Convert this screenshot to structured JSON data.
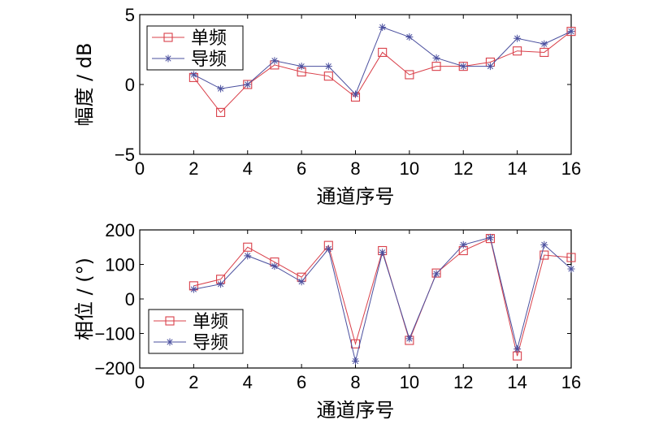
{
  "chart_data": [
    {
      "type": "line",
      "xlabel": "通道序号",
      "ylabel": "幅度 / dB",
      "xlim": [
        0,
        16
      ],
      "ylim": [
        -5,
        5
      ],
      "xticks": [
        0,
        2,
        4,
        6,
        8,
        10,
        12,
        14,
        16
      ],
      "xtick_labels": [
        "0",
        "2",
        "4",
        "6",
        "8",
        "10",
        "12",
        "14",
        "16"
      ],
      "yticks": [
        -5,
        0,
        5
      ],
      "ytick_labels": [
        "−5",
        "0",
        "5"
      ],
      "grid": false,
      "legend_position": "top-left",
      "x": [
        2,
        3,
        4,
        5,
        6,
        7,
        8,
        9,
        10,
        11,
        12,
        13,
        14,
        15,
        16
      ],
      "series": [
        {
          "name": "单频",
          "color": "#d9404a",
          "marker": "square",
          "values": [
            0.5,
            -2.0,
            0.0,
            1.4,
            0.9,
            0.6,
            -0.9,
            2.3,
            0.7,
            1.3,
            1.3,
            1.6,
            2.4,
            2.3,
            3.8
          ]
        },
        {
          "name": "导频",
          "color": "#4a4f9e",
          "marker": "asterisk",
          "values": [
            0.7,
            -0.3,
            0.0,
            1.7,
            1.3,
            1.3,
            -0.7,
            4.1,
            3.4,
            1.9,
            1.3,
            1.3,
            3.3,
            2.9,
            3.8
          ]
        }
      ]
    },
    {
      "type": "line",
      "xlabel": "通道序号",
      "ylabel": "相位 / (°)",
      "xlim": [
        0,
        16
      ],
      "ylim": [
        -200,
        200
      ],
      "xticks": [
        0,
        2,
        4,
        6,
        8,
        10,
        12,
        14,
        16
      ],
      "xtick_labels": [
        "0",
        "2",
        "4",
        "6",
        "8",
        "10",
        "12",
        "14",
        "16"
      ],
      "yticks": [
        -200,
        -100,
        0,
        100,
        200
      ],
      "ytick_labels": [
        "−200",
        "−100",
        "0",
        "100",
        "200"
      ],
      "grid": false,
      "legend_position": "bottom-left",
      "x": [
        2,
        3,
        4,
        5,
        6,
        7,
        8,
        9,
        10,
        11,
        12,
        13,
        14,
        15,
        16
      ],
      "series": [
        {
          "name": "单频",
          "color": "#d9404a",
          "marker": "square",
          "values": [
            38,
            57,
            150,
            107,
            63,
            155,
            -130,
            140,
            -120,
            75,
            140,
            175,
            -165,
            127,
            120
          ]
        },
        {
          "name": "导频",
          "color": "#4a4f9e",
          "marker": "asterisk",
          "values": [
            28,
            43,
            125,
            95,
            50,
            145,
            -180,
            135,
            -115,
            73,
            157,
            178,
            -145,
            157,
            87
          ]
        }
      ]
    }
  ]
}
